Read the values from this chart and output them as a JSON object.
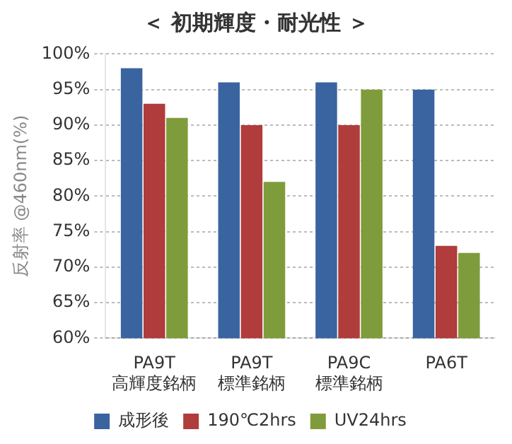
{
  "chart_data": {
    "type": "bar",
    "title": "＜ 初期輝度・耐光性 ＞",
    "ylabel": "反射率 @460nm(%)",
    "categories": [
      "PA9T\n高輝度銘柄",
      "PA9T\n標準銘柄",
      "PA9C\n標準銘柄",
      "PA6T"
    ],
    "series": [
      {
        "name": "成形後",
        "color": "#3a64a0",
        "values": [
          98,
          96,
          96,
          95
        ]
      },
      {
        "name": "190℃2hrs",
        "color": "#b03c3c",
        "values": [
          93,
          90,
          90,
          73
        ]
      },
      {
        "name": "UV24hrs",
        "color": "#7f9c3c",
        "values": [
          91,
          82,
          95,
          72
        ]
      }
    ],
    "ylim": [
      60,
      100
    ],
    "yticks": [
      {
        "value": 60,
        "label": "60%"
      },
      {
        "value": 65,
        "label": "65%"
      },
      {
        "value": 70,
        "label": "70%"
      },
      {
        "value": 75,
        "label": "75%"
      },
      {
        "value": 80,
        "label": "80%"
      },
      {
        "value": 85,
        "label": "85%"
      },
      {
        "value": 90,
        "label": "90%"
      },
      {
        "value": 95,
        "label": "95%"
      },
      {
        "value": 100,
        "label": "100%"
      }
    ],
    "grid": "y",
    "legend": "bottom"
  }
}
